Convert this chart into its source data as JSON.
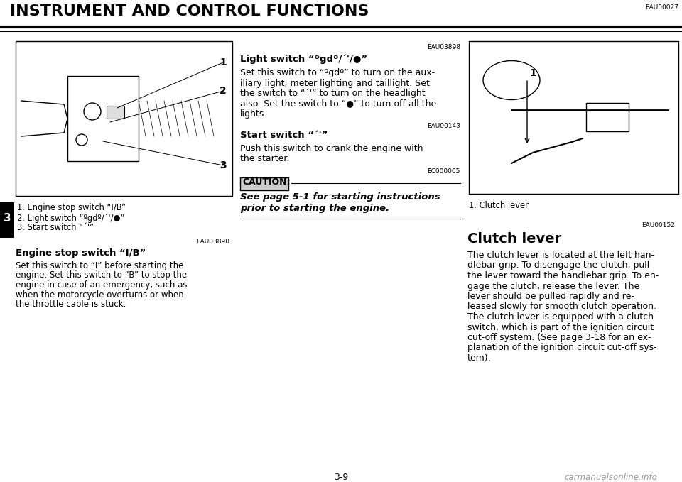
{
  "bg_color": "#ffffff",
  "title": "INSTRUMENT AND CONTROL FUNCTIONS",
  "title_ref": "EAU00027",
  "page_num": "3-9",
  "watermark": "carmanualsonline.info",
  "left_tab_num": "3",
  "left_col_ref": "EAU03890",
  "left_heading": "Engine stop switch “I/B”",
  "left_captions": [
    "1. Engine stop switch “I/B”",
    "2. Light switch “ºgdº/´'/●”",
    "3. Start switch “´'”"
  ],
  "left_lines": [
    "Set this switch to “I” before starting the",
    "engine. Set this switch to “B” to stop the",
    "engine in case of an emergency, such as",
    "when the motorcycle overturns or when",
    "the throttle cable is stuck."
  ],
  "mid_ref1": "EAU03898",
  "mid_heading1": "Light switch “ºgdº/´'/●”",
  "mid_lines1": [
    "Set this switch to “ºgdº” to turn on the aux-",
    "iliary light, meter lighting and taillight. Set",
    "the switch to “´'” to turn on the headlight",
    "also. Set the switch to “●” to turn off all the",
    "lights."
  ],
  "mid_ref2": "EAU00143",
  "mid_heading2": "Start switch “´'”",
  "mid_lines2": [
    "Push this switch to crank the engine with",
    "the starter."
  ],
  "mid_ref3": "EC000005",
  "caution_label": "CAUTION:",
  "caution_lines": [
    "See page 5-1 for starting instructions",
    "prior to starting the engine."
  ],
  "right_ref1": "EAU00152",
  "right_heading": "Clutch lever",
  "right_caption": "1. Clutch lever",
  "right_lines": [
    "The clutch lever is located at the left han-",
    "dlebar grip. To disengage the clutch, pull",
    "the lever toward the handlebar grip. To en-",
    "gage the clutch, release the lever. The",
    "lever should be pulled rapidly and re-",
    "leased slowly for smooth clutch operation.",
    "The clutch lever is equipped with a clutch",
    "switch, which is part of the ignition circuit",
    "cut-off system. (See page 3-18 for an ex-",
    "planation of the ignition circuit cut-off sys-",
    "tem)."
  ]
}
